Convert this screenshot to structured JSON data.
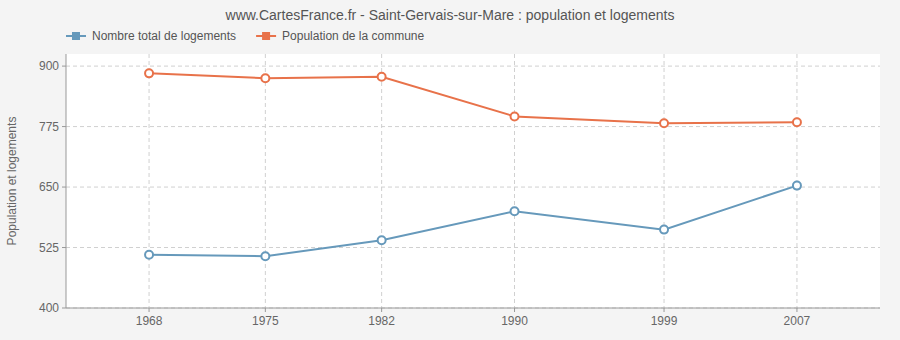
{
  "chart_data": {
    "type": "line",
    "title": "www.CartesFrance.fr - Saint-Gervais-sur-Mare : population et logements",
    "ylabel": "Population et logements",
    "x": [
      1968,
      1975,
      1982,
      1990,
      1999,
      2007
    ],
    "series": [
      {
        "name": "Nombre total de logements",
        "color": "#6699bb",
        "marker": "circle",
        "values": [
          510,
          507,
          540,
          600,
          562,
          653
        ]
      },
      {
        "name": "Population de la commune",
        "color": "#e8724a",
        "marker": "circle",
        "values": [
          885,
          875,
          878,
          796,
          782,
          784
        ]
      }
    ],
    "xlim": [
      1963,
      2012
    ],
    "xticks": [
      1968,
      1975,
      1982,
      1990,
      1999,
      2007
    ],
    "ylim": [
      400,
      925
    ],
    "yticks": [
      400,
      525,
      650,
      775,
      900
    ],
    "grid": true,
    "legend": "upper left"
  }
}
